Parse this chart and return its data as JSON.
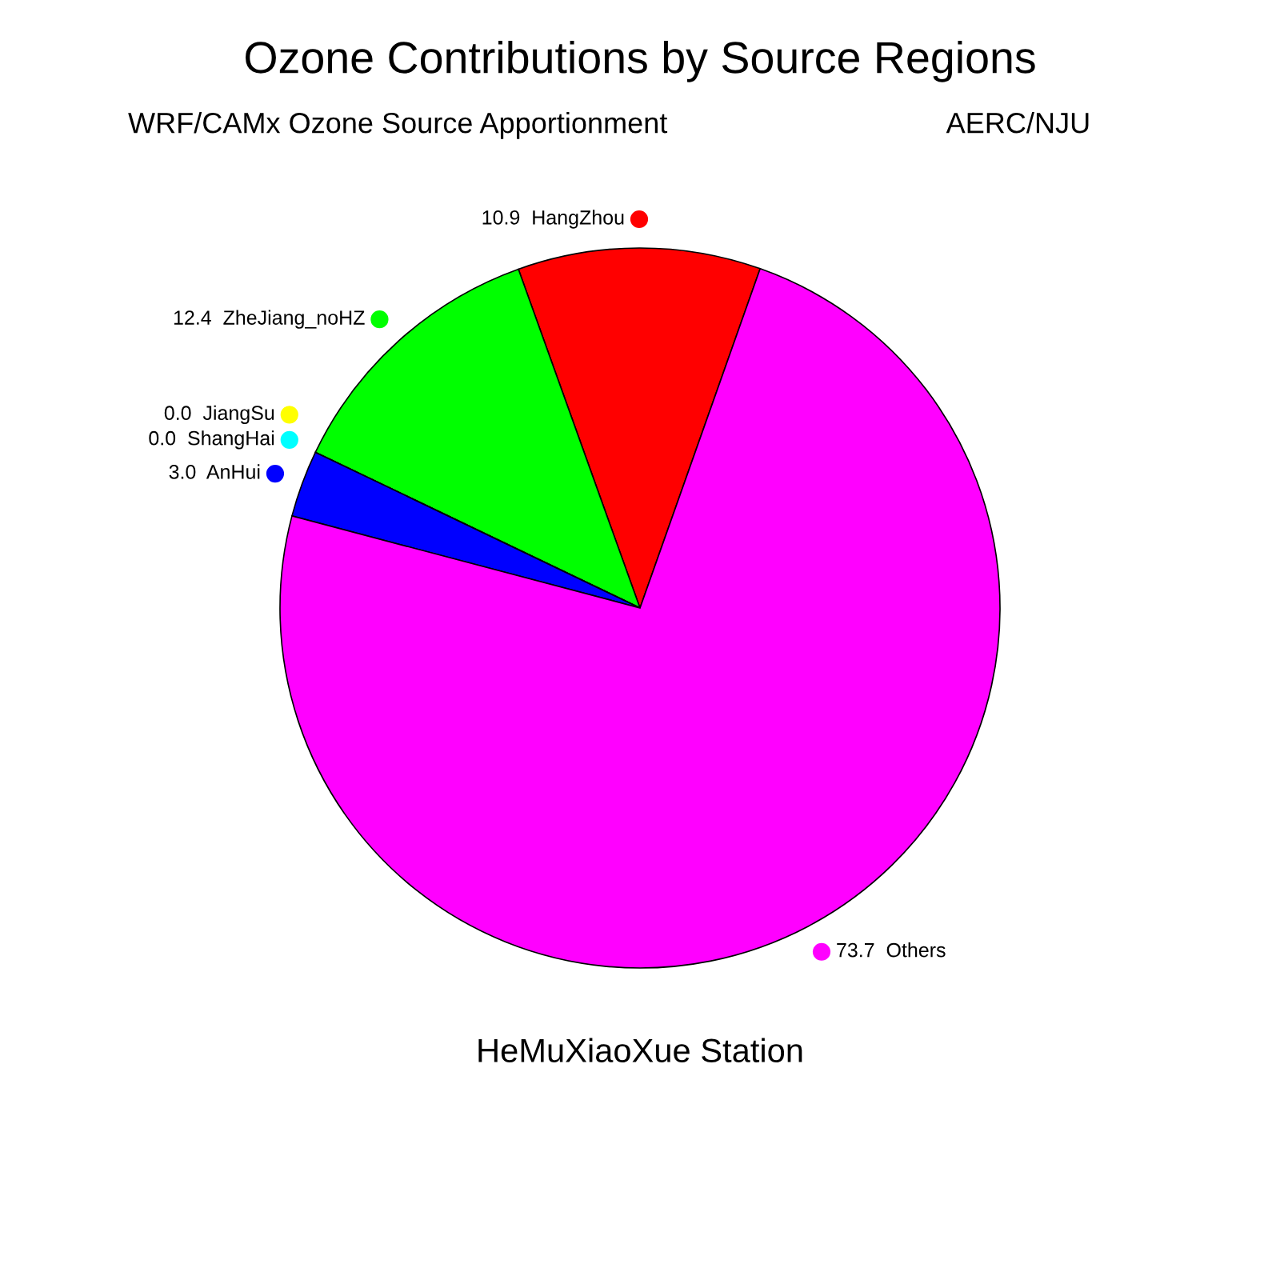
{
  "chart_data": {
    "type": "pie",
    "title": "Ozone Contributions by Source Regions",
    "subtitle": "WRF/CAMx Ozone Source Apportionment",
    "annotations": [
      "AERC/NJU"
    ],
    "xlabel": "HeMuXiaoXue Station",
    "categories": [
      "HangZhou",
      "ZheJiang_noHZ",
      "ShangHai",
      "JiangSu",
      "AnHui",
      "Others"
    ],
    "values": [
      10.9,
      12.4,
      0.0,
      0.0,
      3.0,
      73.7
    ],
    "value_labels": [
      "10.9",
      "12.4",
      "0.0",
      "0.0",
      "3.0",
      "73.7"
    ],
    "colors": [
      "#ff0000",
      "#00ff00",
      "#00ffff",
      "#ffff00",
      "#0000ff",
      "#ff00ff"
    ],
    "legend": "left"
  }
}
